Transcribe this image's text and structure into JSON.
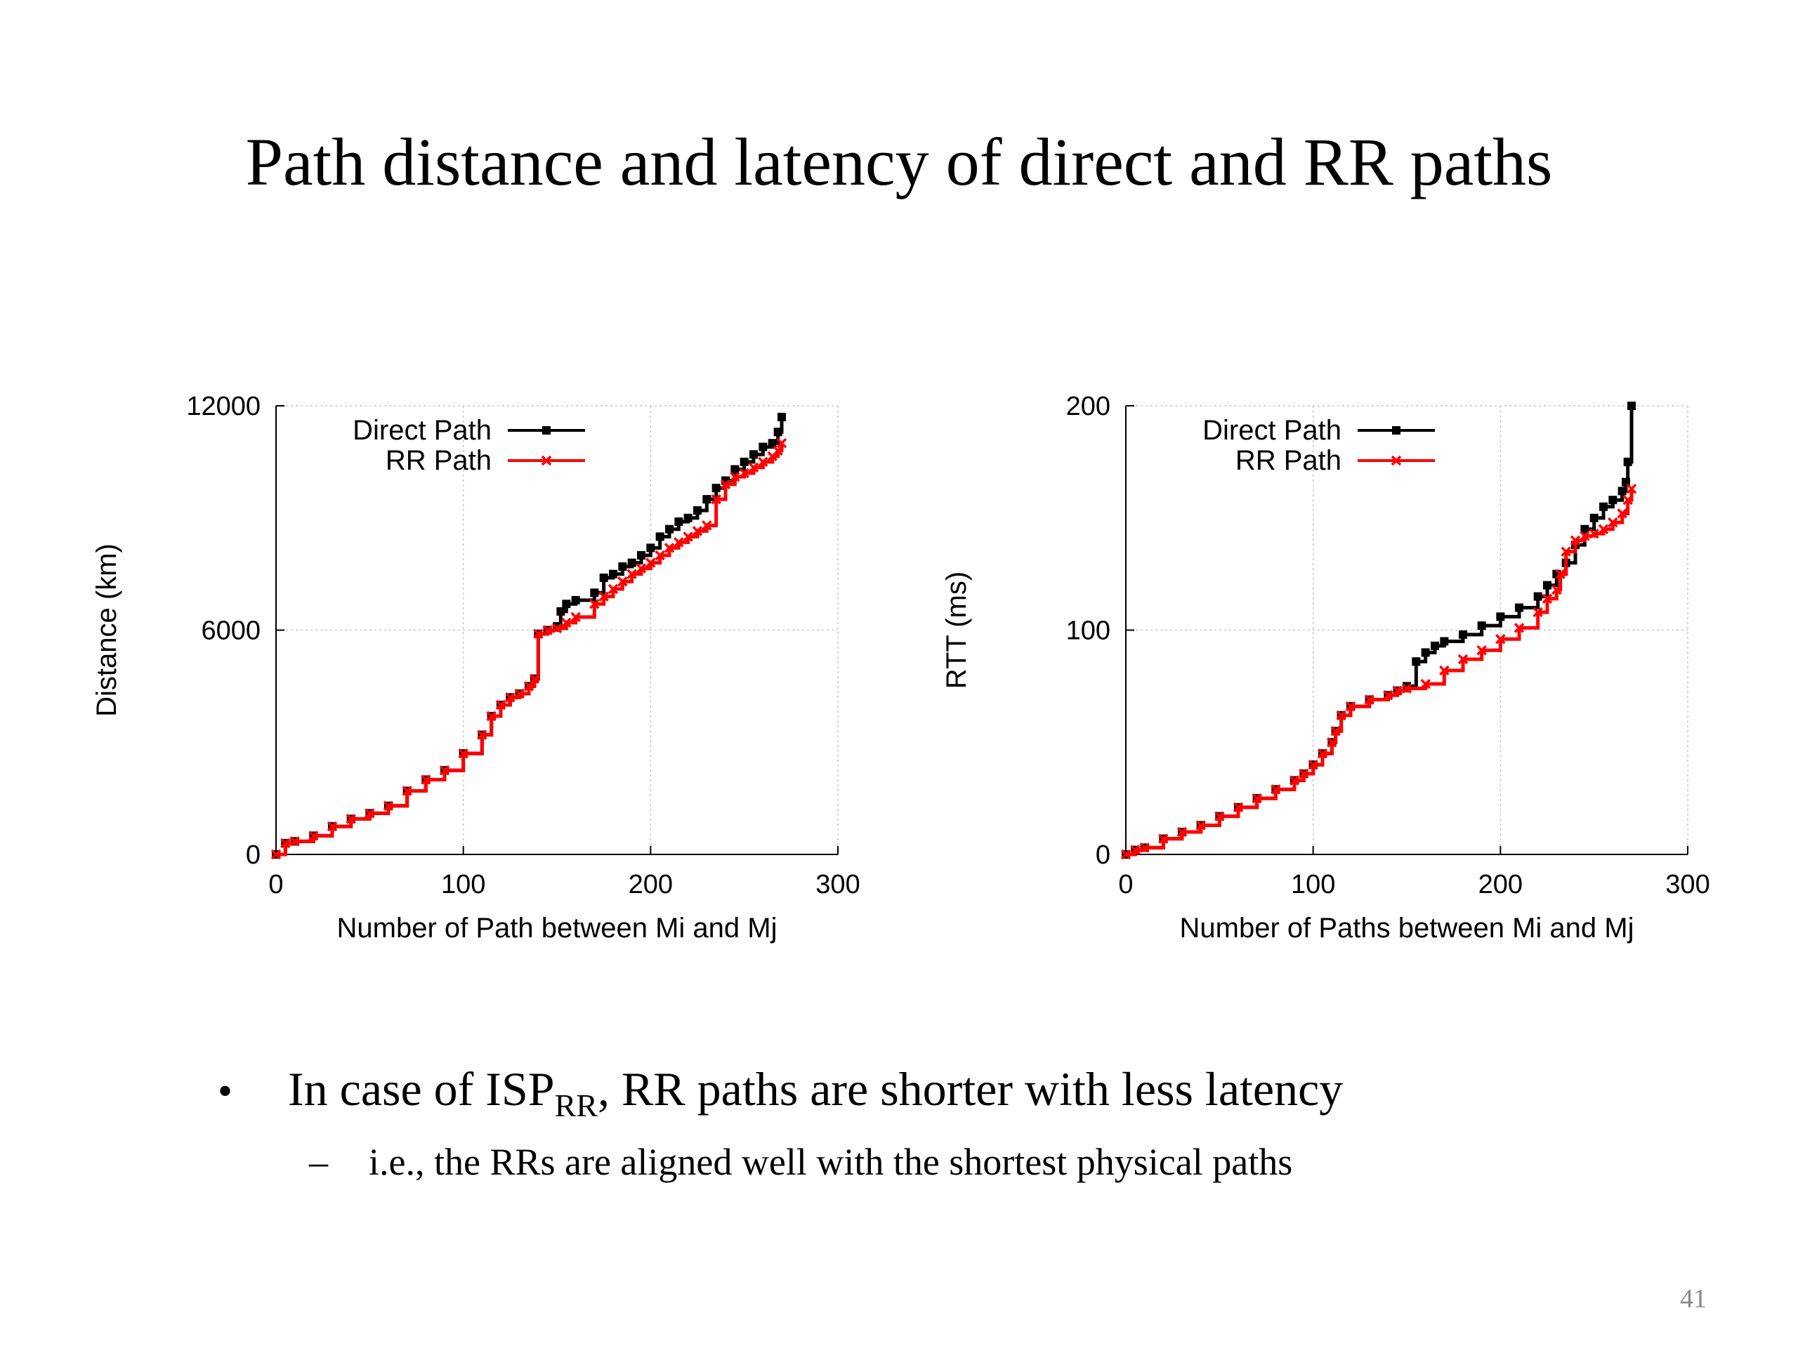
{
  "slide": {
    "title": "Path distance and latency of direct and RR paths",
    "bullet_main_prefix": "In case of ISP",
    "bullet_main_sub": "RR",
    "bullet_main_suffix": ", RR paths are shorter with less latency",
    "bullet_dot": "•",
    "bullet_dash": "–",
    "bullet_sub": "i.e., the RRs are aligned well with the shortest physical paths",
    "page_number": "41"
  },
  "colors": {
    "direct": "#000000",
    "rr": "#ff0000",
    "grid": "#c8c8c8"
  },
  "chart_data": [
    {
      "type": "line",
      "xlabel": "Number of Path between Mi and Mj",
      "ylabel": "Distance (km)",
      "xlim": [
        0,
        300
      ],
      "ylim": [
        0,
        12000
      ],
      "xticks": [
        0,
        100,
        200,
        300
      ],
      "yticks": [
        0,
        6000,
        12000
      ],
      "grid": true,
      "legend_position": "top-left",
      "series": [
        {
          "name": "Direct Path",
          "x": [
            0,
            5,
            10,
            20,
            30,
            40,
            50,
            60,
            70,
            80,
            90,
            100,
            110,
            115,
            120,
            125,
            130,
            135,
            138,
            140,
            145,
            150,
            152,
            155,
            160,
            170,
            175,
            180,
            185,
            190,
            195,
            200,
            205,
            210,
            215,
            220,
            225,
            230,
            235,
            240,
            245,
            250,
            255,
            260,
            265,
            268,
            270
          ],
          "y": [
            0,
            300,
            350,
            500,
            750,
            950,
            1100,
            1300,
            1700,
            2000,
            2250,
            2700,
            3200,
            3700,
            4000,
            4200,
            4300,
            4500,
            4700,
            5900,
            6000,
            6100,
            6500,
            6700,
            6800,
            7000,
            7400,
            7500,
            7700,
            7800,
            8000,
            8200,
            8500,
            8700,
            8900,
            9000,
            9200,
            9500,
            9800,
            10000,
            10300,
            10500,
            10700,
            10900,
            11000,
            11300,
            11700
          ]
        },
        {
          "name": "RR Path",
          "x": [
            0,
            5,
            10,
            20,
            30,
            40,
            50,
            60,
            70,
            80,
            90,
            100,
            110,
            115,
            120,
            125,
            130,
            135,
            138,
            140,
            145,
            150,
            155,
            160,
            170,
            175,
            180,
            185,
            190,
            195,
            200,
            205,
            210,
            215,
            220,
            225,
            230,
            235,
            240,
            245,
            250,
            255,
            260,
            265,
            268,
            270
          ],
          "y": [
            0,
            300,
            350,
            500,
            750,
            950,
            1100,
            1300,
            1700,
            2000,
            2250,
            2700,
            3200,
            3700,
            4000,
            4200,
            4300,
            4500,
            4700,
            5900,
            6000,
            6050,
            6200,
            6350,
            6700,
            6900,
            7100,
            7300,
            7500,
            7650,
            7800,
            8000,
            8200,
            8350,
            8500,
            8650,
            8800,
            9500,
            9900,
            10100,
            10200,
            10350,
            10500,
            10650,
            10800,
            11000
          ]
        }
      ]
    },
    {
      "type": "line",
      "xlabel": "Number of Paths between Mi and Mj",
      "ylabel": "RTT (ms)",
      "xlim": [
        0,
        300
      ],
      "ylim": [
        0,
        200
      ],
      "xticks": [
        0,
        100,
        200,
        300
      ],
      "yticks": [
        0,
        100,
        200
      ],
      "grid": true,
      "legend_position": "top-left",
      "series": [
        {
          "name": "Direct Path",
          "x": [
            0,
            5,
            10,
            20,
            30,
            40,
            50,
            60,
            70,
            80,
            90,
            95,
            100,
            105,
            110,
            112,
            115,
            120,
            130,
            140,
            145,
            150,
            155,
            160,
            165,
            170,
            180,
            190,
            200,
            210,
            220,
            225,
            230,
            235,
            240,
            245,
            250,
            255,
            260,
            265,
            267,
            268,
            270
          ],
          "y": [
            0,
            2,
            3,
            7,
            10,
            13,
            17,
            21,
            25,
            29,
            33,
            36,
            40,
            45,
            50,
            55,
            62,
            66,
            69,
            71,
            73,
            75,
            86,
            90,
            93,
            95,
            98,
            102,
            106,
            110,
            115,
            120,
            125,
            130,
            138,
            145,
            150,
            155,
            158,
            162,
            166,
            175,
            200
          ]
        },
        {
          "name": "RR Path",
          "x": [
            0,
            5,
            10,
            20,
            30,
            40,
            50,
            60,
            70,
            80,
            90,
            95,
            100,
            105,
            110,
            112,
            115,
            120,
            130,
            140,
            145,
            150,
            160,
            170,
            180,
            190,
            200,
            210,
            220,
            225,
            230,
            232,
            235,
            240,
            245,
            250,
            255,
            260,
            265,
            268,
            270
          ],
          "y": [
            0,
            2,
            3,
            7,
            10,
            13,
            17,
            21,
            25,
            29,
            33,
            36,
            40,
            45,
            50,
            55,
            62,
            66,
            69,
            71,
            73,
            74,
            76,
            82,
            87,
            91,
            96,
            101,
            108,
            114,
            118,
            125,
            135,
            140,
            142,
            143,
            145,
            148,
            152,
            158,
            163
          ]
        }
      ]
    }
  ]
}
